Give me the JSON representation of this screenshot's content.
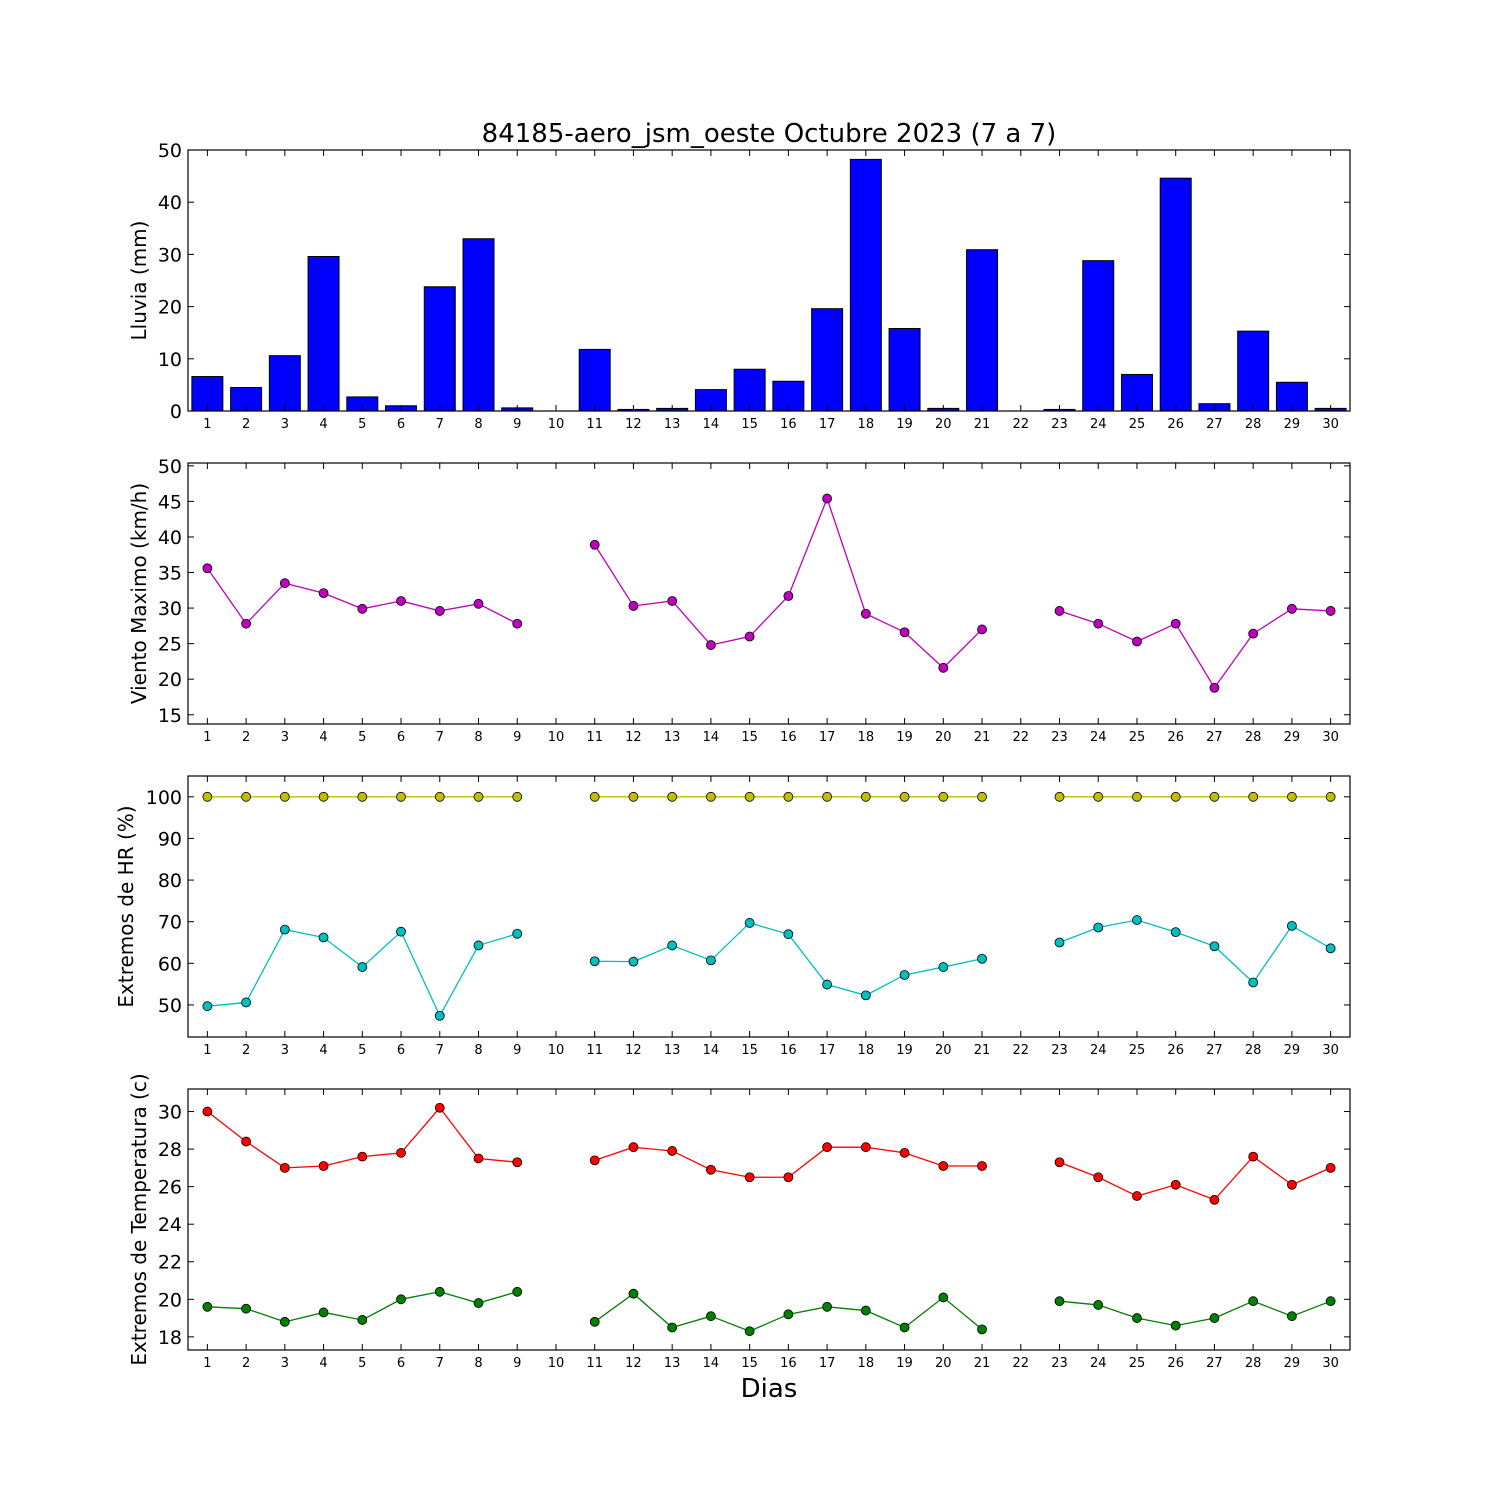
{
  "chart_data": {
    "title": "84185-aero_jsm_oeste Octubre 2023  (7 a 7)",
    "xlabel": "Dias",
    "x": [
      1,
      2,
      3,
      4,
      5,
      6,
      7,
      8,
      9,
      10,
      11,
      12,
      13,
      14,
      15,
      16,
      17,
      18,
      19,
      20,
      21,
      22,
      23,
      24,
      25,
      26,
      27,
      28,
      29,
      30
    ],
    "panels": [
      {
        "type": "bar",
        "ylabel": "Lluvia (mm)",
        "ylim": [
          0,
          50
        ],
        "yticks": [
          0,
          10,
          20,
          30,
          40,
          50
        ],
        "series": [
          {
            "color": "#0000ff",
            "values": [
              6.6,
              4.5,
              10.6,
              29.6,
              2.7,
              1.0,
              23.8,
              33.0,
              0.6,
              0,
              11.8,
              0.3,
              0.5,
              4.1,
              8.0,
              5.7,
              19.6,
              48.2,
              15.8,
              0.5,
              30.9,
              0,
              0.3,
              28.8,
              7.0,
              44.6,
              1.4,
              15.3,
              5.5,
              0.5
            ]
          }
        ]
      },
      {
        "type": "line",
        "ylabel": "Viento Maximo (km/h)",
        "ylim": [
          13.7,
          50.4
        ],
        "yticks": [
          15,
          20,
          25,
          30,
          35,
          40,
          45,
          50
        ],
        "series": [
          {
            "color": "#bf00bf",
            "values": [
              35.6,
              27.8,
              33.5,
              32.1,
              29.9,
              31.0,
              29.6,
              30.6,
              27.8,
              null,
              38.9,
              30.3,
              31.0,
              24.8,
              26.0,
              31.7,
              45.4,
              29.2,
              26.6,
              21.6,
              27.0,
              null,
              29.6,
              27.8,
              25.3,
              27.8,
              18.8,
              26.4,
              29.9,
              29.6
            ]
          }
        ]
      },
      {
        "type": "line",
        "ylabel": "Extremos de HR (%)",
        "ylim": [
          42.3,
          105
        ],
        "yticks": [
          50,
          60,
          70,
          80,
          90,
          100
        ],
        "series": [
          {
            "color": "#bfbf00",
            "values": [
              100,
              100,
              100,
              100,
              100,
              100,
              100,
              100,
              100,
              null,
              100,
              100,
              100,
              100,
              100,
              100,
              100,
              100,
              100,
              100,
              100,
              null,
              100,
              100,
              100,
              100,
              100,
              100,
              100,
              100
            ]
          },
          {
            "color": "#00bfbf",
            "values": [
              49.7,
              50.6,
              68.1,
              66.2,
              59.1,
              67.6,
              47.4,
              64.3,
              67.1,
              null,
              60.5,
              60.4,
              64.3,
              60.7,
              69.7,
              67.0,
              54.9,
              52.3,
              57.2,
              59.1,
              61.1,
              null,
              65.0,
              68.6,
              70.4,
              67.5,
              64.1,
              55.4,
              69.0,
              63.6
            ]
          }
        ]
      },
      {
        "type": "line",
        "ylabel": "Extremos de Temperatura (c)",
        "ylim": [
          17.3,
          31.2
        ],
        "yticks": [
          18,
          20,
          22,
          24,
          26,
          28,
          30
        ],
        "series": [
          {
            "color": "#ff0000",
            "values": [
              30.0,
              28.4,
              27.0,
              27.1,
              27.6,
              27.8,
              30.2,
              27.5,
              27.3,
              null,
              27.4,
              28.1,
              27.9,
              26.9,
              26.5,
              26.5,
              28.1,
              28.1,
              27.8,
              27.1,
              27.1,
              null,
              27.3,
              26.5,
              25.5,
              26.1,
              25.3,
              27.6,
              26.1,
              27.0
            ]
          },
          {
            "color": "#007f00",
            "values": [
              19.6,
              19.5,
              18.8,
              19.3,
              18.9,
              20.0,
              20.4,
              19.8,
              20.4,
              null,
              18.8,
              20.3,
              18.5,
              19.1,
              18.3,
              19.2,
              19.6,
              19.4,
              18.5,
              20.1,
              18.4,
              null,
              19.9,
              19.7,
              19.0,
              18.6,
              19.0,
              19.9,
              19.1,
              19.9
            ]
          }
        ]
      }
    ]
  }
}
